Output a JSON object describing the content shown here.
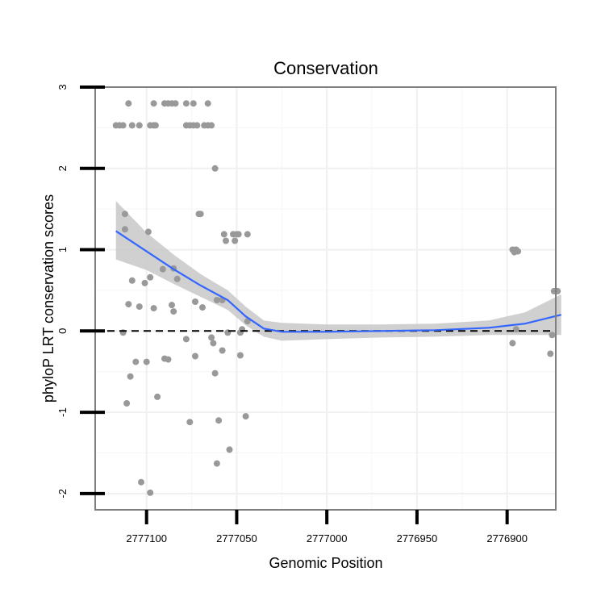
{
  "chart_data": {
    "type": "scatter",
    "title": "Conservation",
    "xlabel": "Genomic Position",
    "ylabel": "phyloP LRT conservation scores",
    "x_reversed": true,
    "xlim": [
      2777128.5,
      2776873
    ],
    "ylim": [
      -2.2,
      3.0
    ],
    "x_ticks": [
      2777100,
      2777050,
      2777000,
      2776950,
      2776900
    ],
    "x_tick_labels": [
      "2777100",
      "2777050",
      "2777000",
      "2776950",
      "2776900"
    ],
    "y_ticks": [
      -2,
      -1,
      0,
      1,
      2,
      3
    ],
    "y_tick_labels": [
      "-2",
      "-1",
      "0",
      "1",
      "2",
      "3"
    ],
    "reference_line": {
      "y": 0,
      "style": "dashed"
    },
    "point_color": "#999999",
    "smooth_color": "#3366ff",
    "ribbon_color": "#c8c8c8",
    "points": [
      [
        2777117,
        2.53
      ],
      [
        2777115,
        2.53
      ],
      [
        2777113,
        2.53
      ],
      [
        2777108,
        2.53
      ],
      [
        2777104,
        2.53
      ],
      [
        2777098,
        2.53
      ],
      [
        2777096,
        2.53
      ],
      [
        2777095,
        2.53
      ],
      [
        2777078,
        2.53
      ],
      [
        2777076,
        2.53
      ],
      [
        2777074,
        2.53
      ],
      [
        2777072,
        2.53
      ],
      [
        2777068,
        2.53
      ],
      [
        2777066,
        2.53
      ],
      [
        2777064,
        2.53
      ],
      [
        2777110,
        2.8
      ],
      [
        2777096,
        2.8
      ],
      [
        2777090,
        2.8
      ],
      [
        2777088,
        2.8
      ],
      [
        2777086,
        2.8
      ],
      [
        2777084,
        2.8
      ],
      [
        2777078,
        2.8
      ],
      [
        2777074,
        2.8
      ],
      [
        2777066,
        2.8
      ],
      [
        2777062,
        2.0
      ],
      [
        2777112,
        1.44
      ],
      [
        2777071,
        1.44
      ],
      [
        2777070,
        1.44
      ],
      [
        2777112,
        1.25
      ],
      [
        2777099,
        1.22
      ],
      [
        2777057,
        1.19
      ],
      [
        2777052,
        1.19
      ],
      [
        2777050,
        1.19
      ],
      [
        2777049,
        1.19
      ],
      [
        2777044,
        1.19
      ],
      [
        2777056,
        1.11
      ],
      [
        2777051,
        1.11
      ],
      [
        2777091,
        0.76
      ],
      [
        2777085,
        0.77
      ],
      [
        2777083,
        0.64
      ],
      [
        2777108,
        0.62
      ],
      [
        2777101,
        0.59
      ],
      [
        2777098,
        0.66
      ],
      [
        2777110,
        0.33
      ],
      [
        2777104,
        0.3
      ],
      [
        2777096,
        0.28
      ],
      [
        2777086,
        0.32
      ],
      [
        2777085,
        0.24
      ],
      [
        2777073,
        0.36
      ],
      [
        2777069,
        0.29
      ],
      [
        2777061,
        0.38
      ],
      [
        2777058,
        0.38
      ],
      [
        2777113,
        -0.02
      ],
      [
        2777064,
        -0.08
      ],
      [
        2777063,
        -0.15
      ],
      [
        2777055,
        -0.02
      ],
      [
        2777048,
        -0.02
      ],
      [
        2777047,
        0.02
      ],
      [
        2777044,
        0.12
      ],
      [
        2777090,
        -0.34
      ],
      [
        2777088,
        -0.35
      ],
      [
        2777078,
        -0.1
      ],
      [
        2777073,
        -0.31
      ],
      [
        2777058,
        -0.24
      ],
      [
        2777048,
        -0.3
      ],
      [
        2777109,
        -0.56
      ],
      [
        2777106,
        -0.38
      ],
      [
        2777100,
        -0.38
      ],
      [
        2777062,
        -0.52
      ],
      [
        2777111,
        -0.89
      ],
      [
        2777094,
        -0.81
      ],
      [
        2777076,
        -1.12
      ],
      [
        2777060,
        -1.1
      ],
      [
        2777045,
        -1.05
      ],
      [
        2777054,
        -1.46
      ],
      [
        2777061,
        -1.63
      ],
      [
        2777103,
        -1.86
      ],
      [
        2777098,
        -1.99
      ],
      [
        2776897,
        1.0
      ],
      [
        2776896,
        0.97
      ],
      [
        2776895,
        1.0
      ],
      [
        2776894,
        0.98
      ],
      [
        2776874,
        0.49
      ],
      [
        2776873,
        0.49
      ],
      [
        2776872,
        0.49
      ],
      [
        2776897,
        -0.15
      ],
      [
        2776895,
        0.02
      ],
      [
        2776876,
        -0.28
      ],
      [
        2776875,
        -0.05
      ]
    ],
    "smooth_line": [
      [
        2777117,
        1.23
      ],
      [
        2777100,
        0.98
      ],
      [
        2777085,
        0.76
      ],
      [
        2777070,
        0.56
      ],
      [
        2777055,
        0.38
      ],
      [
        2777045,
        0.18
      ],
      [
        2777035,
        0.03
      ],
      [
        2777025,
        -0.01
      ],
      [
        2777000,
        -0.01
      ],
      [
        2776970,
        0.0
      ],
      [
        2776940,
        0.01
      ],
      [
        2776910,
        0.04
      ],
      [
        2776890,
        0.09
      ],
      [
        2776870,
        0.2
      ]
    ],
    "ci_band": [
      [
        2777117,
        0.88,
        1.6
      ],
      [
        2777100,
        0.75,
        1.21
      ],
      [
        2777085,
        0.58,
        0.94
      ],
      [
        2777070,
        0.42,
        0.7
      ],
      [
        2777055,
        0.26,
        0.5
      ],
      [
        2777045,
        0.07,
        0.3
      ],
      [
        2777035,
        -0.07,
        0.13
      ],
      [
        2777025,
        -0.12,
        0.1
      ],
      [
        2777000,
        -0.1,
        0.08
      ],
      [
        2776970,
        -0.08,
        0.08
      ],
      [
        2776940,
        -0.07,
        0.09
      ],
      [
        2776910,
        -0.05,
        0.13
      ],
      [
        2776890,
        -0.05,
        0.23
      ],
      [
        2776870,
        -0.05,
        0.45
      ]
    ]
  }
}
